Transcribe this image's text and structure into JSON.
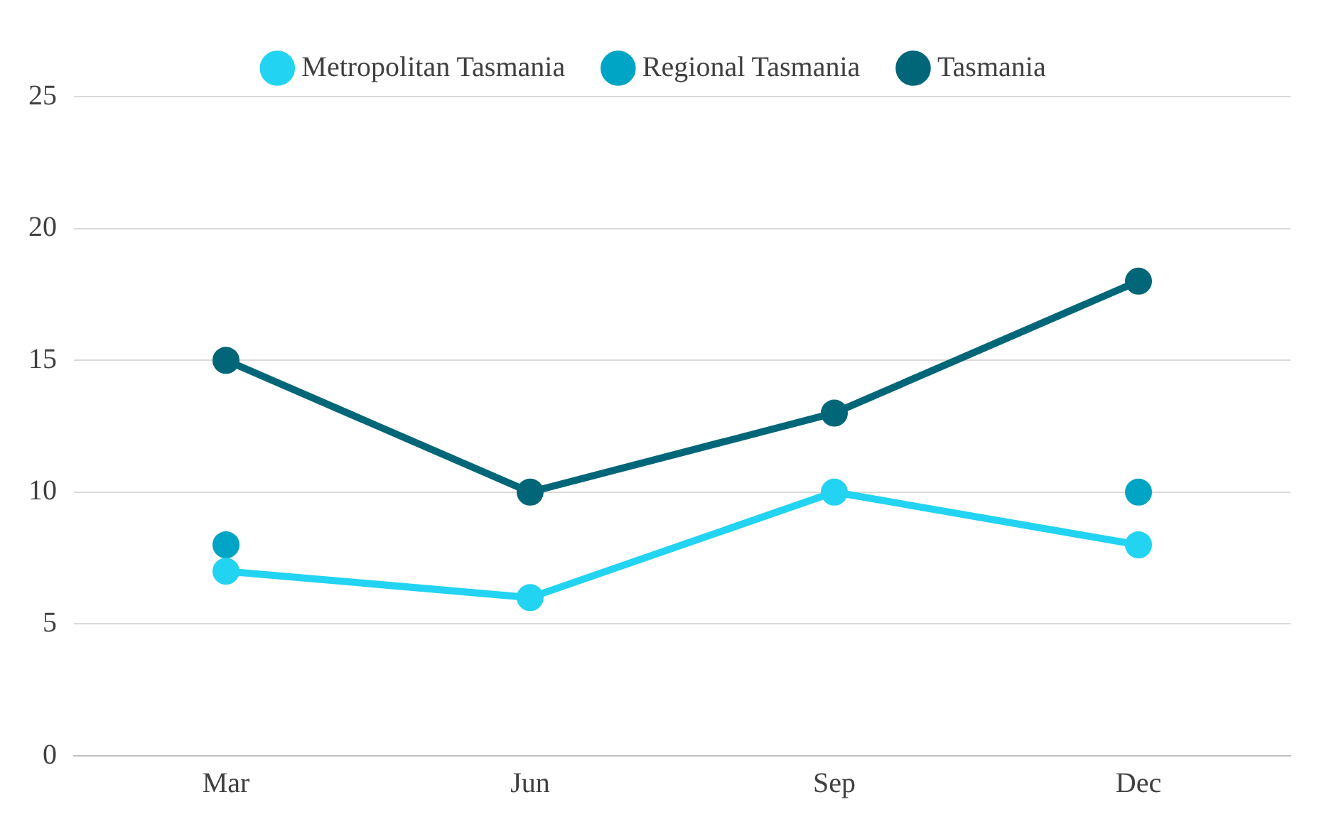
{
  "chart_data": {
    "type": "line",
    "categories": [
      "Mar",
      "Jun",
      "Sep",
      "Dec"
    ],
    "series": [
      {
        "name": "Metropolitan Tasmania",
        "color": "#22d3f2",
        "values": [
          7,
          6,
          10,
          8
        ]
      },
      {
        "name": "Regional Tasmania",
        "type": "scatter",
        "color": "#00a5c6",
        "values": [
          8,
          null,
          null,
          10
        ]
      },
      {
        "name": "Tasmania",
        "color": "#006678",
        "values": [
          15,
          10,
          13,
          18
        ]
      }
    ],
    "ylim": [
      0,
      25
    ],
    "yticks": [
      0,
      5,
      10,
      15,
      20,
      25
    ],
    "grid": "y",
    "legend": "top",
    "marker": "circle",
    "line_style": "solid"
  }
}
